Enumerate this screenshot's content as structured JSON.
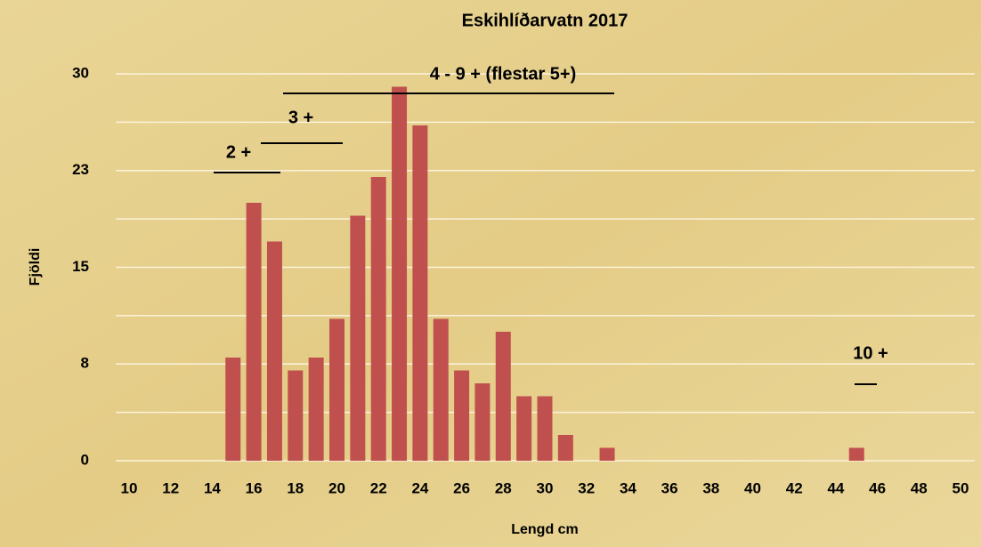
{
  "chart_data": {
    "type": "bar",
    "title": "Eskihlíðarvatn 2017",
    "xlabel": "Lengd cm",
    "ylabel": "Fjöldi",
    "categories": [
      10,
      null,
      12,
      null,
      14,
      null,
      16,
      null,
      18,
      null,
      20,
      null,
      22,
      null,
      24,
      null,
      26,
      null,
      28,
      null,
      30,
      null,
      32,
      null,
      34,
      null,
      36,
      null,
      38,
      null,
      40,
      null,
      42,
      null,
      44,
      null,
      46,
      null,
      48,
      null,
      50
    ],
    "values": [
      0,
      0,
      0,
      0,
      0,
      8,
      20,
      17,
      7,
      8,
      11,
      19,
      22,
      29,
      26,
      11,
      7,
      6,
      10,
      5,
      5,
      2,
      0,
      1,
      0,
      0,
      0,
      0,
      0,
      0,
      0,
      0,
      0,
      0,
      0,
      1,
      0,
      0,
      0,
      0,
      0
    ],
    "color": "#c0504d",
    "ylim": [
      0,
      30
    ],
    "yticks": [
      0,
      {
        "value": 7.5,
        "label": "8"
      },
      15,
      {
        "value": 22.5,
        "label": "23"
      },
      30
    ],
    "grid": true,
    "minor_grid": true,
    "annotations": [
      "2 +",
      "3 +",
      "4 - 9 + (flestar 5+)",
      "10 +"
    ]
  }
}
